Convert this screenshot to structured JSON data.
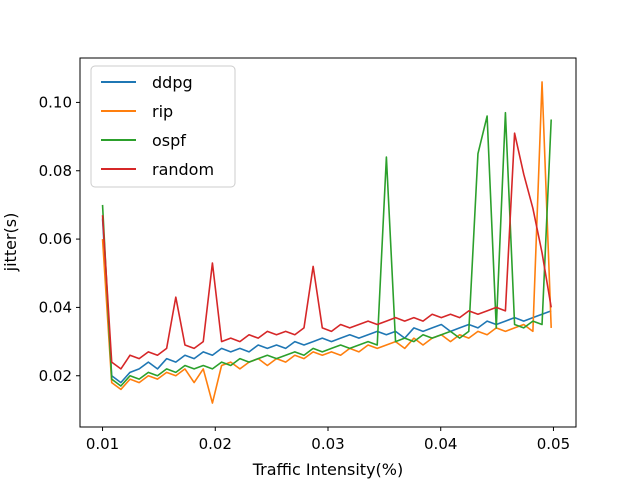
{
  "chart_data": {
    "type": "line",
    "xlabel": "Traffic Intensity(%)",
    "ylabel": "jitter(s)",
    "xlim": [
      0.008,
      0.052
    ],
    "ylim": [
      0.005,
      0.113
    ],
    "xticks": [
      0.01,
      0.02,
      0.03,
      0.04,
      0.05
    ],
    "xtick_labels": [
      "0.01",
      "0.02",
      "0.03",
      "0.04",
      "0.05"
    ],
    "yticks": [
      0.02,
      0.04,
      0.06,
      0.08,
      0.1
    ],
    "ytick_labels": [
      "0.02",
      "0.04",
      "0.06",
      "0.08",
      "0.10"
    ],
    "grid": false,
    "legend_position": "top-left",
    "x_start": 0.01,
    "x_end": 0.0498,
    "series": [
      {
        "name": "ddpg",
        "color": "#1f77b4",
        "values": [
          0.066,
          0.02,
          0.018,
          0.021,
          0.022,
          0.024,
          0.022,
          0.025,
          0.024,
          0.026,
          0.025,
          0.027,
          0.026,
          0.028,
          0.027,
          0.028,
          0.027,
          0.029,
          0.028,
          0.029,
          0.028,
          0.03,
          0.029,
          0.03,
          0.031,
          0.03,
          0.031,
          0.032,
          0.031,
          0.032,
          0.033,
          0.032,
          0.033,
          0.031,
          0.034,
          0.033,
          0.034,
          0.035,
          0.033,
          0.034,
          0.035,
          0.034,
          0.036,
          0.035,
          0.036,
          0.037,
          0.036,
          0.037,
          0.038,
          0.039
        ]
      },
      {
        "name": "rip",
        "color": "#ff7f0e",
        "values": [
          0.06,
          0.018,
          0.016,
          0.019,
          0.018,
          0.02,
          0.019,
          0.021,
          0.02,
          0.022,
          0.018,
          0.022,
          0.012,
          0.023,
          0.024,
          0.022,
          0.024,
          0.025,
          0.023,
          0.025,
          0.024,
          0.026,
          0.025,
          0.027,
          0.026,
          0.027,
          0.026,
          0.028,
          0.027,
          0.029,
          0.028,
          0.029,
          0.03,
          0.028,
          0.031,
          0.029,
          0.031,
          0.032,
          0.03,
          0.032,
          0.031,
          0.033,
          0.032,
          0.034,
          0.033,
          0.034,
          0.035,
          0.033,
          0.106,
          0.034
        ]
      },
      {
        "name": "ospf",
        "color": "#2ca02c",
        "values": [
          0.07,
          0.019,
          0.017,
          0.02,
          0.019,
          0.021,
          0.02,
          0.022,
          0.021,
          0.023,
          0.022,
          0.023,
          0.022,
          0.024,
          0.023,
          0.025,
          0.024,
          0.025,
          0.026,
          0.025,
          0.026,
          0.027,
          0.026,
          0.028,
          0.027,
          0.028,
          0.029,
          0.028,
          0.029,
          0.03,
          0.029,
          0.084,
          0.03,
          0.031,
          0.03,
          0.032,
          0.031,
          0.032,
          0.033,
          0.031,
          0.033,
          0.085,
          0.096,
          0.034,
          0.097,
          0.035,
          0.034,
          0.036,
          0.035,
          0.095
        ]
      },
      {
        "name": "random",
        "color": "#d62728",
        "values": [
          0.067,
          0.024,
          0.022,
          0.026,
          0.025,
          0.027,
          0.026,
          0.028,
          0.043,
          0.029,
          0.028,
          0.03,
          0.053,
          0.03,
          0.031,
          0.03,
          0.032,
          0.031,
          0.033,
          0.032,
          0.033,
          0.032,
          0.034,
          0.052,
          0.034,
          0.033,
          0.035,
          0.034,
          0.035,
          0.036,
          0.035,
          0.036,
          0.037,
          0.036,
          0.037,
          0.036,
          0.038,
          0.037,
          0.038,
          0.037,
          0.039,
          0.038,
          0.039,
          0.04,
          0.039,
          0.091,
          0.079,
          0.069,
          0.056,
          0.04
        ]
      }
    ]
  }
}
